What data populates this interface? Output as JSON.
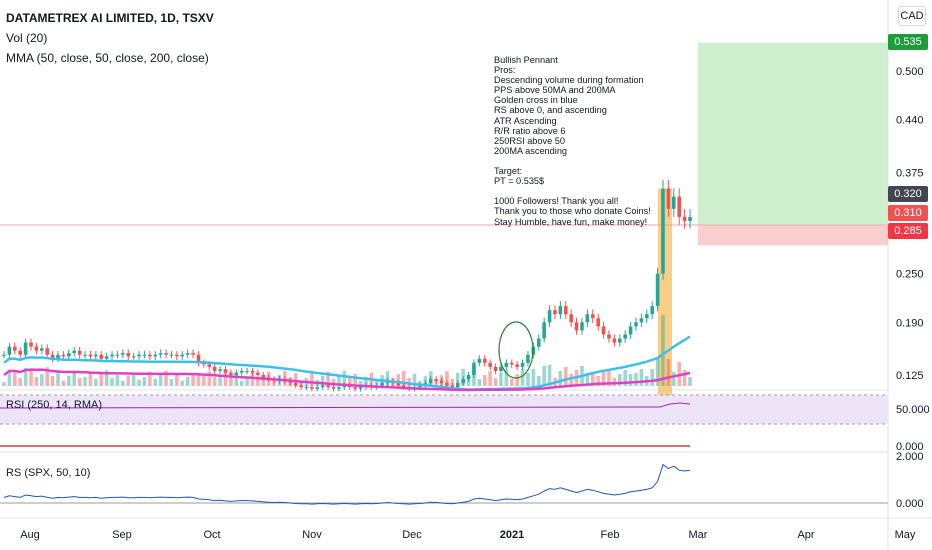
{
  "header": {
    "symbol_title": "DATAMETREX AI LIMITED, 1D, TSXV",
    "vol_label": "Vol (20)",
    "mma_label": "MMA (50, close, 50, close, 200, close)",
    "currency_button": "CAD"
  },
  "annotation": {
    "text": "Bullish Pennant\nPros:\nDescending volume during formation\nPPS above 50MA and 200MA\nGolden cross in blue\nRS above 0, and ascending\nATR Ascending\nR/R ratio above 6\n250RSI above 50\n200MA ascending\n\nTarget:\nPT = 0.535$\n\n1000 Followers! Thank you all!\nThank you to those who donate Coins!\nStay Humble, have fun, make money!"
  },
  "price_tags": {
    "target": "0.535",
    "last": "0.320",
    "entry": "0.310",
    "stop": "0.285"
  },
  "panes": {
    "rsi_label": "RSI (250, 14, RMA)",
    "rs_label": "RS (SPX, 50, 10)"
  },
  "colors": {
    "up": "#26a69a",
    "down": "#ef5350",
    "ma50": "#3dbfec",
    "ma200": "#e040c8",
    "target_zone": "#c8ecc5",
    "stop_zone": "#f9c9c9",
    "rsi_line": "#9c27b0",
    "rs_line": "#1e56b8"
  },
  "chart_data": {
    "type": "candlestick",
    "y_axis": {
      "ticks": [
        "0.500",
        "0.440",
        "0.375",
        "0.250",
        "0.190",
        "0.125"
      ],
      "ylim": [
        0.1,
        0.56
      ]
    },
    "x_axis": {
      "ticks": [
        "Aug",
        "Sep",
        "Oct",
        "Nov",
        "Dec",
        "2021",
        "Feb",
        "Mar",
        "Apr",
        "May"
      ]
    },
    "rsi": {
      "ticks": [
        "50.000",
        "0.000"
      ],
      "last": 58
    },
    "rs": {
      "ticks": [
        "2.000",
        "0.000"
      ]
    },
    "candles_close": [
      0.15,
      0.16,
      0.155,
      0.15,
      0.165,
      0.16,
      0.155,
      0.158,
      0.15,
      0.145,
      0.15,
      0.148,
      0.152,
      0.155,
      0.15,
      0.15,
      0.148,
      0.15,
      0.145,
      0.148,
      0.15,
      0.15,
      0.152,
      0.148,
      0.148,
      0.15,
      0.15,
      0.148,
      0.15,
      0.152,
      0.15,
      0.15,
      0.148,
      0.15,
      0.152,
      0.15,
      0.14,
      0.138,
      0.135,
      0.13,
      0.132,
      0.128,
      0.125,
      0.128,
      0.13,
      0.13,
      0.128,
      0.125,
      0.122,
      0.12,
      0.118,
      0.12,
      0.118,
      0.115,
      0.112,
      0.11,
      0.11,
      0.108,
      0.11,
      0.112,
      0.11,
      0.108,
      0.11,
      0.112,
      0.11,
      0.108,
      0.11,
      0.112,
      0.11,
      0.112,
      0.115,
      0.118,
      0.115,
      0.112,
      0.11,
      0.108,
      0.11,
      0.112,
      0.115,
      0.12,
      0.118,
      0.115,
      0.112,
      0.11,
      0.115,
      0.12,
      0.125,
      0.14,
      0.145,
      0.14,
      0.135,
      0.13,
      0.135,
      0.14,
      0.138,
      0.135,
      0.14,
      0.15,
      0.16,
      0.17,
      0.19,
      0.205,
      0.2,
      0.21,
      0.2,
      0.19,
      0.18,
      0.19,
      0.2,
      0.195,
      0.185,
      0.175,
      0.17,
      0.165,
      0.17,
      0.175,
      0.185,
      0.19,
      0.195,
      0.2,
      0.21,
      0.25,
      0.355,
      0.33,
      0.345,
      0.32,
      0.315,
      0.32
    ],
    "note": "Price values estimated from the y-axis; one value per daily candle from mid-Jul 2020 to late Feb 2021."
  }
}
